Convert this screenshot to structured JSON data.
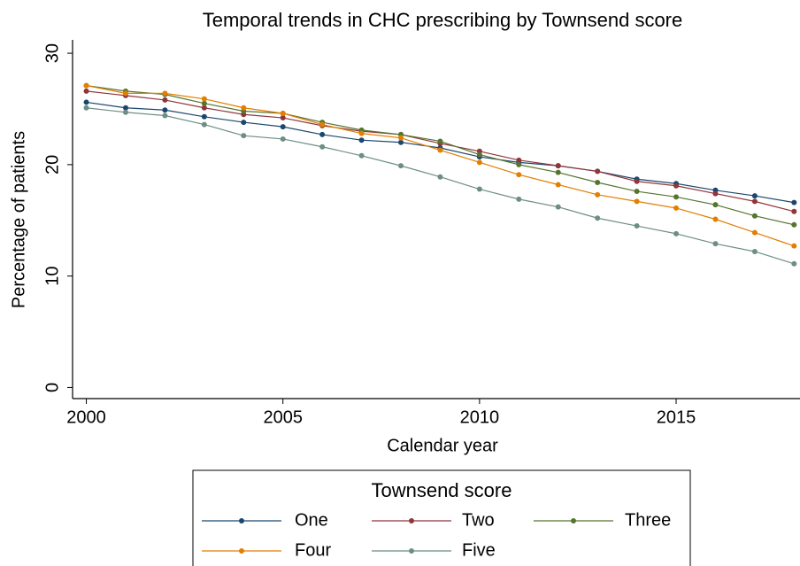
{
  "chart_data": {
    "type": "line",
    "title": "Temporal trends in CHC prescribing by Townsend score",
    "xlabel": "Calendar year",
    "ylabel": "Percentage of patients",
    "legend_title": "Townsend score",
    "legend": "bottom",
    "x": [
      2000,
      2001,
      2002,
      2003,
      2004,
      2005,
      2006,
      2007,
      2008,
      2009,
      2010,
      2011,
      2012,
      2013,
      2014,
      2015,
      2016,
      2017,
      2018
    ],
    "series": [
      {
        "name": "One",
        "color": "#1a476f",
        "values": [
          25.6,
          25.1,
          24.9,
          24.3,
          23.8,
          23.4,
          22.7,
          22.2,
          22.0,
          21.5,
          20.7,
          20.2,
          19.9,
          19.4,
          18.7,
          18.3,
          17.7,
          17.2,
          16.6
        ]
      },
      {
        "name": "Two",
        "color": "#90353b",
        "values": [
          26.6,
          26.2,
          25.8,
          25.1,
          24.5,
          24.2,
          23.5,
          23.0,
          22.7,
          21.9,
          21.2,
          20.4,
          19.9,
          19.4,
          18.5,
          18.1,
          17.4,
          16.7,
          15.8
        ]
      },
      {
        "name": "Three",
        "color": "#55752f",
        "values": [
          27.1,
          26.6,
          26.3,
          25.5,
          24.8,
          24.6,
          23.8,
          23.1,
          22.7,
          22.1,
          20.9,
          20.0,
          19.3,
          18.4,
          17.6,
          17.1,
          16.4,
          15.4,
          14.6
        ]
      },
      {
        "name": "Four",
        "color": "#e37e00",
        "values": [
          27.1,
          26.4,
          26.4,
          25.9,
          25.1,
          24.6,
          23.6,
          22.8,
          22.4,
          21.3,
          20.2,
          19.1,
          18.2,
          17.3,
          16.7,
          16.1,
          15.1,
          13.9,
          12.7
        ]
      },
      {
        "name": "Five",
        "color": "#6e8e84",
        "values": [
          25.1,
          24.7,
          24.4,
          23.6,
          22.6,
          22.3,
          21.6,
          20.8,
          19.9,
          18.9,
          17.8,
          16.9,
          16.2,
          15.2,
          14.5,
          13.8,
          12.9,
          12.2,
          11.1
        ]
      }
    ],
    "xlim": [
      1999.65,
      2018.15
    ],
    "xticks": [
      2000,
      2005,
      2010,
      2015
    ],
    "ylim": [
      -1,
      31.2
    ],
    "yticks": [
      0,
      10,
      20,
      30
    ],
    "grid": false
  }
}
